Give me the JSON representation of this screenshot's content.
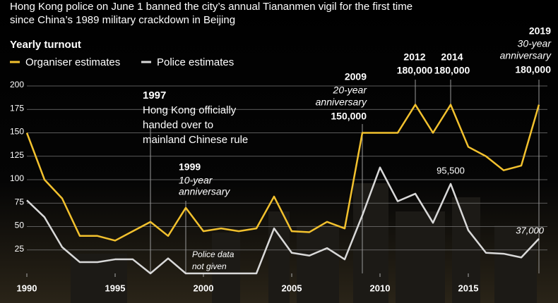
{
  "chart_data": {
    "type": "line",
    "title": [
      "Hong Kong police on June 1 banned the city’s annual Tiananmen vigil for the first time",
      "since China’s 1989 military crackdown in Beijing"
    ],
    "subtitle": "Yearly turnout",
    "x": [
      1990,
      1991,
      1992,
      1993,
      1994,
      1995,
      1996,
      1997,
      1998,
      1999,
      2000,
      2001,
      2002,
      2003,
      2004,
      2005,
      2006,
      2007,
      2008,
      2009,
      2010,
      2011,
      2012,
      2013,
      2014,
      2015,
      2016,
      2017,
      2018,
      2019
    ],
    "series": [
      {
        "name": "Organiser estimates",
        "color": "#f2c12e",
        "values": [
          150,
          100,
          80,
          40,
          40,
          35,
          45,
          55,
          40,
          70,
          45,
          48,
          45,
          48,
          82,
          45,
          44,
          55,
          48,
          150,
          150,
          150,
          180,
          150,
          180,
          135,
          125,
          110,
          115,
          180
        ]
      },
      {
        "name": "Police estimates",
        "color": "#d9d9d9",
        "values": [
          78,
          60,
          28,
          12,
          12,
          15,
          15,
          0,
          16,
          0,
          0,
          0,
          0,
          0,
          48,
          22,
          19,
          27,
          15,
          62,
          113,
          77,
          85,
          54,
          95.5,
          46,
          22,
          21,
          17,
          37
        ]
      }
    ],
    "xlim": [
      1990,
      2019
    ],
    "xticks": [
      1990,
      1995,
      2000,
      2005,
      2010,
      2015
    ],
    "ylim": [
      0,
      200
    ],
    "yticks": [
      25,
      50,
      75,
      100,
      125,
      150,
      175,
      200
    ],
    "grid": true,
    "annotations": [
      {
        "lines": [
          "1997",
          "Hong Kong officially",
          "handed over to",
          "mainland Chinese rule"
        ]
      },
      {
        "lines": [
          "1999",
          "10-year",
          "anniversary"
        ]
      },
      {
        "lines": [
          "Police data",
          "not given"
        ]
      },
      {
        "lines": [
          "2009",
          "20-year",
          "anniversary",
          "150,000"
        ]
      },
      {
        "lines": [
          "2012",
          "180,000"
        ]
      },
      {
        "lines": [
          "2014",
          "180,000"
        ]
      },
      {
        "lines": [
          "2019",
          "30-year",
          "anniversary",
          "180,000"
        ]
      },
      {
        "lines": [
          "95,500"
        ]
      },
      {
        "lines": [
          "37,000"
        ]
      }
    ]
  }
}
